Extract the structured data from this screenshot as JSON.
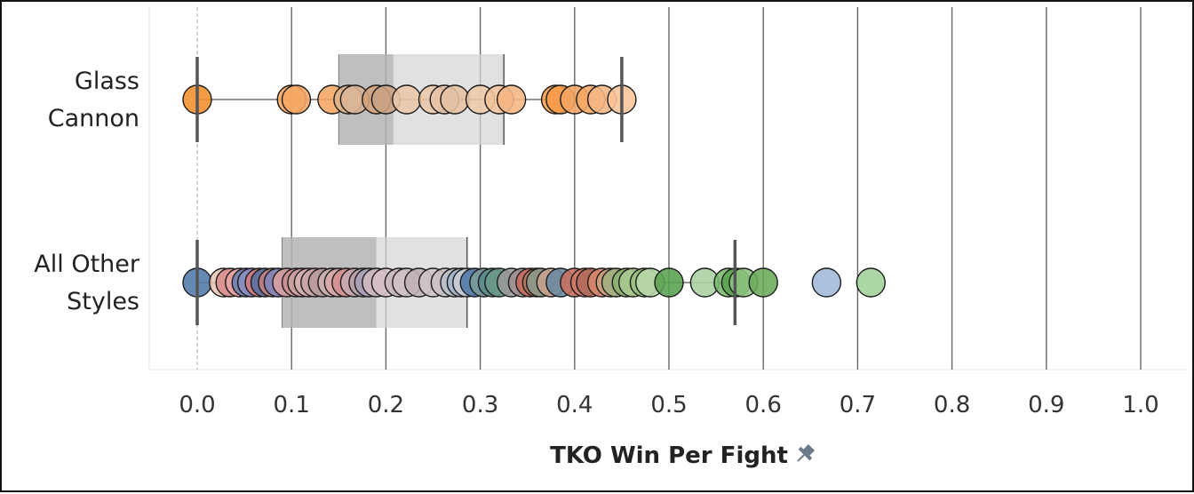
{
  "chart_data": {
    "type": "scatter",
    "title": "",
    "xlabel": "TKO Win Per Fight",
    "ylabel": "",
    "xlim": [
      0.0,
      1.0
    ],
    "x_ticks": [
      "0.0",
      "0.1",
      "0.2",
      "0.3",
      "0.4",
      "0.5",
      "0.6",
      "0.7",
      "0.8",
      "0.9",
      "1.0"
    ],
    "grid": "vertical",
    "axis_title_icon": "pin-icon",
    "rows": [
      {
        "label_lines": [
          "Glass",
          "Cannon"
        ],
        "box": {
          "lower_whisker": 0.0,
          "q1": 0.15,
          "median": 0.208,
          "q3": 0.325,
          "upper_whisker": 0.45
        },
        "points": [
          {
            "x": 0.0,
            "color": "#f28e2b"
          },
          {
            "x": 0.1,
            "color": "#f6a663"
          },
          {
            "x": 0.105,
            "color": "#f6a663"
          },
          {
            "x": 0.143,
            "color": "#f6a663"
          },
          {
            "x": 0.16,
            "color": "#e0b48e"
          },
          {
            "x": 0.167,
            "color": "#d9b596"
          },
          {
            "x": 0.19,
            "color": "#d3a27a"
          },
          {
            "x": 0.2,
            "color": "#c8a384"
          },
          {
            "x": 0.222,
            "color": "#eac7a8"
          },
          {
            "x": 0.25,
            "color": "#eac7a8"
          },
          {
            "x": 0.262,
            "color": "#e5c1a2"
          },
          {
            "x": 0.273,
            "color": "#e5c1a2"
          },
          {
            "x": 0.3,
            "color": "#eccaa9"
          },
          {
            "x": 0.32,
            "color": "#f3c49a"
          },
          {
            "x": 0.333,
            "color": "#f6b583"
          },
          {
            "x": 0.38,
            "color": "#f59b4a"
          },
          {
            "x": 0.385,
            "color": "#f59b4a"
          },
          {
            "x": 0.4,
            "color": "#f6a663"
          },
          {
            "x": 0.417,
            "color": "#f6a663"
          },
          {
            "x": 0.429,
            "color": "#f6b583"
          },
          {
            "x": 0.45,
            "color": "#f9c497"
          }
        ]
      },
      {
        "label_lines": [
          "All Other",
          "Styles"
        ],
        "box": {
          "lower_whisker": 0.0,
          "q1": 0.09,
          "median": 0.19,
          "q3": 0.286,
          "upper_whisker": 0.57
        },
        "points": [
          {
            "x": 0.0,
            "color": "#4e79a7"
          },
          {
            "x": 0.028,
            "color": "#e8c5b5"
          },
          {
            "x": 0.035,
            "color": "#d98c8c"
          },
          {
            "x": 0.045,
            "color": "#e8a5a5"
          },
          {
            "x": 0.052,
            "color": "#6a7fb0"
          },
          {
            "x": 0.058,
            "color": "#8a8fc0"
          },
          {
            "x": 0.066,
            "color": "#d17a7a"
          },
          {
            "x": 0.072,
            "color": "#5a6fa0"
          },
          {
            "x": 0.08,
            "color": "#c28080"
          },
          {
            "x": 0.086,
            "color": "#7f85b8"
          },
          {
            "x": 0.095,
            "color": "#d9a0a0"
          },
          {
            "x": 0.105,
            "color": "#c98e8e"
          },
          {
            "x": 0.111,
            "color": "#c9a0a0"
          },
          {
            "x": 0.118,
            "color": "#d6b0b0"
          },
          {
            "x": 0.125,
            "color": "#c7a5a5"
          },
          {
            "x": 0.133,
            "color": "#b89a9a"
          },
          {
            "x": 0.143,
            "color": "#c9b0b0"
          },
          {
            "x": 0.15,
            "color": "#d8a8a8"
          },
          {
            "x": 0.158,
            "color": "#d49090"
          },
          {
            "x": 0.167,
            "color": "#c8a8b0"
          },
          {
            "x": 0.176,
            "color": "#b5a0a8"
          },
          {
            "x": 0.182,
            "color": "#a8a0b8"
          },
          {
            "x": 0.19,
            "color": "#d0b8c0"
          },
          {
            "x": 0.2,
            "color": "#d8c0c8"
          },
          {
            "x": 0.214,
            "color": "#c8b8c0"
          },
          {
            "x": 0.222,
            "color": "#d0c0c8"
          },
          {
            "x": 0.235,
            "color": "#c0b0b8"
          },
          {
            "x": 0.25,
            "color": "#d0c4c8"
          },
          {
            "x": 0.263,
            "color": "#c8c0c4"
          },
          {
            "x": 0.273,
            "color": "#b8c0c8"
          },
          {
            "x": 0.28,
            "color": "#a0b4c8"
          },
          {
            "x": 0.286,
            "color": "#c8ccd4"
          },
          {
            "x": 0.294,
            "color": "#4e79a7"
          },
          {
            "x": 0.304,
            "color": "#7a9a9a"
          },
          {
            "x": 0.313,
            "color": "#5a8a8a"
          },
          {
            "x": 0.32,
            "color": "#6a9a8a"
          },
          {
            "x": 0.333,
            "color": "#9a9a9a"
          },
          {
            "x": 0.345,
            "color": "#a09090"
          },
          {
            "x": 0.353,
            "color": "#c86a5a"
          },
          {
            "x": 0.36,
            "color": "#b07a60"
          },
          {
            "x": 0.364,
            "color": "#8a9a8a"
          },
          {
            "x": 0.375,
            "color": "#c8a090"
          },
          {
            "x": 0.385,
            "color": "#6a8aa0"
          },
          {
            "x": 0.4,
            "color": "#c87060"
          },
          {
            "x": 0.411,
            "color": "#d07a68"
          },
          {
            "x": 0.417,
            "color": "#b06a5a"
          },
          {
            "x": 0.429,
            "color": "#d8866a"
          },
          {
            "x": 0.438,
            "color": "#c8a080"
          },
          {
            "x": 0.444,
            "color": "#a0b080"
          },
          {
            "x": 0.455,
            "color": "#8ab070"
          },
          {
            "x": 0.462,
            "color": "#a8c890"
          },
          {
            "x": 0.474,
            "color": "#98c080"
          },
          {
            "x": 0.48,
            "color": "#b8d8a8"
          },
          {
            "x": 0.5,
            "color": "#59a14f"
          },
          {
            "x": 0.538,
            "color": "#a8d0a0"
          },
          {
            "x": 0.563,
            "color": "#7ab870"
          },
          {
            "x": 0.571,
            "color": "#59a14f"
          },
          {
            "x": 0.579,
            "color": "#8cc480"
          },
          {
            "x": 0.6,
            "color": "#6aaa5a"
          },
          {
            "x": 0.667,
            "color": "#a0b8d8"
          },
          {
            "x": 0.714,
            "color": "#a0d098"
          }
        ]
      }
    ]
  }
}
